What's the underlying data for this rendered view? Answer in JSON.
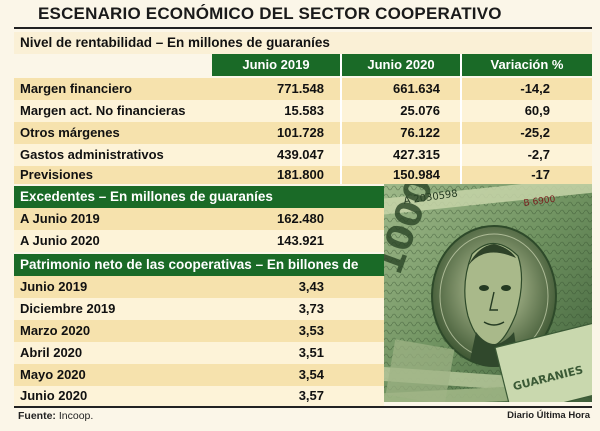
{
  "title": "ESCENARIO ECONÓMICO DEL SECTOR COOPERATIVO",
  "section1": {
    "heading": "Nivel de rentabilidad – En millones de guaraníes",
    "columns": [
      "Junio 2019",
      "Junio 2020",
      "Variación %"
    ],
    "rows": [
      {
        "label": "Margen financiero",
        "v2019": "771.548",
        "v2020": "661.634",
        "var": "-14,2"
      },
      {
        "label": "Margen act. No financieras",
        "v2019": "15.583",
        "v2020": "25.076",
        "var": "60,9"
      },
      {
        "label": "Otros márgenes",
        "v2019": "101.728",
        "v2020": "76.122",
        "var": "-25,2"
      },
      {
        "label": "Gastos administrativos",
        "v2019": "439.047",
        "v2020": "427.315",
        "var": "-2,7"
      },
      {
        "label": "Previsiones",
        "v2019": "181.800",
        "v2020": "150.984",
        "var": "-17"
      }
    ]
  },
  "section2": {
    "heading": "Excedentes – En millones de guaraníes",
    "rows": [
      {
        "label": "A Junio 2019",
        "value": "162.480"
      },
      {
        "label": "A Junio 2020",
        "value": "143.921"
      }
    ]
  },
  "section3": {
    "heading": "Patrimonio neto de las cooperativas – En billones de guaraníes",
    "rows": [
      {
        "label": "Junio 2019",
        "value": "3,43"
      },
      {
        "label": "Diciembre 2019",
        "value": "3,73"
      },
      {
        "label": "Marzo 2020",
        "value": "3,53"
      },
      {
        "label": "Abril 2020",
        "value": "3,51"
      },
      {
        "label": "Mayo 2020",
        "value": "3,54"
      },
      {
        "label": "Junio 2020",
        "value": "3,57"
      }
    ]
  },
  "footer": {
    "source_label": "Fuente:",
    "source_value": "Incoop.",
    "credit": "Diario Última Hora"
  },
  "banknote": {
    "corner_text": "100000"
  },
  "colors": {
    "header_green": "#1a6a27",
    "band_light": "#f6e2ad",
    "band_pale": "#fdf3d8",
    "background": "#fbf6e8"
  }
}
